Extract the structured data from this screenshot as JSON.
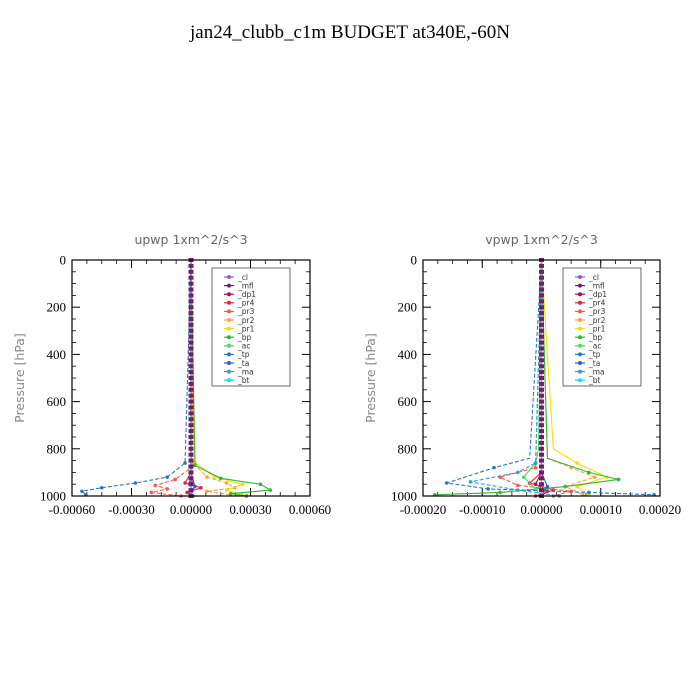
{
  "page": {
    "title": "jan24_clubb_c1m  BUDGET at340E,-60N"
  },
  "legend_terms": [
    "_cl",
    "_mfl",
    "_dp1",
    "_pr4",
    "_pr3",
    "_pr2",
    "_pr1",
    "_bp",
    "_ac",
    "_tp",
    "_ta",
    "_ma",
    "_bt"
  ],
  "colors": {
    "_cl": "#9b59c0",
    "_mfl": "#7a1a6b",
    "_dp1": "#b01040",
    "_pr4": "#e8203a",
    "_pr3": "#ff5a3a",
    "_pr2": "#ffa040",
    "_pr1": "#f5e000",
    "_bp": "#30b830",
    "_ac": "#40e060",
    "_tp": "#2878c8",
    "_ta": "#2f5fd0",
    "_ma": "#30a0d8",
    "_bt": "#20d8e0"
  },
  "chart_data": [
    {
      "type": "line",
      "title": "upwp   1xm^2/s^3",
      "xlabel": "",
      "ylabel": "Pressure [hPa]",
      "xlim": [
        -0.0006,
        0.0006
      ],
      "ylim": [
        1000,
        0
      ],
      "xticks": [
        "-0.00060",
        "-0.00030",
        "0.00000",
        "0.00030",
        "0.00060"
      ],
      "xtick_values": [
        -0.0006,
        -0.0003,
        0,
        0.0003,
        0.0006
      ],
      "yticks": [
        "0",
        "200",
        "400",
        "600",
        "800",
        "1000"
      ],
      "ytick_values": [
        0,
        200,
        400,
        600,
        800,
        1000
      ],
      "legend": "top-right",
      "series": [
        {
          "name": "_cl",
          "x": [
            0,
            0,
            0
          ],
          "y": [
            0,
            900,
            1000
          ]
        },
        {
          "name": "_mfl",
          "x": [
            0,
            0,
            0
          ],
          "y": [
            0,
            900,
            1000
          ]
        },
        {
          "name": "_dp1",
          "x": [
            0,
            0,
            0
          ],
          "y": [
            0,
            940,
            1000
          ]
        },
        {
          "name": "_pr4",
          "x": [
            0,
            0,
            -3e-05,
            5e-05,
            -2e-05,
            1e-05
          ],
          "y": [
            0,
            900,
            945,
            965,
            985,
            1000
          ]
        },
        {
          "name": "_pr3",
          "x": [
            0,
            0,
            -8e-05,
            -0.00018,
            -0.00012,
            -0.0002,
            -5e-05
          ],
          "y": [
            0,
            880,
            930,
            955,
            970,
            985,
            1000
          ]
        },
        {
          "name": "_pr2",
          "x": [
            0,
            1e-05,
            8e-05,
            0.00018,
            0.00022,
            8e-05,
            0.0002
          ],
          "y": [
            0,
            860,
            920,
            945,
            965,
            980,
            995
          ]
        },
        {
          "name": "_pr1",
          "x": [
            0,
            2e-05,
            0.00012,
            0.00026,
            0.00018,
            0.00026
          ],
          "y": [
            0,
            860,
            920,
            950,
            975,
            995
          ]
        },
        {
          "name": "_bp",
          "x": [
            0,
            2e-05,
            0.00015,
            0.00035,
            0.0004,
            0.0002,
            0.00028
          ],
          "y": [
            0,
            870,
            925,
            950,
            975,
            990,
            1000
          ]
        },
        {
          "name": "_ac",
          "x": [
            0,
            0,
            0,
            0
          ],
          "y": [
            0,
            900,
            980,
            1000
          ]
        },
        {
          "name": "_tp",
          "x": [
            0,
            -3e-05,
            -0.00012,
            -0.00028,
            -0.00045,
            -0.00055,
            -0.00053
          ],
          "y": [
            0,
            860,
            920,
            945,
            965,
            980,
            995
          ]
        },
        {
          "name": "_ta",
          "x": [
            0,
            0,
            2e-05,
            0,
            0
          ],
          "y": [
            0,
            900,
            960,
            985,
            1000
          ]
        },
        {
          "name": "_ma",
          "x": [
            0,
            0,
            0
          ],
          "y": [
            0,
            900,
            1000
          ]
        },
        {
          "name": "_bt",
          "x": [
            0,
            0,
            0
          ],
          "y": [
            0,
            900,
            1000
          ]
        }
      ]
    },
    {
      "type": "line",
      "title": "vpwp   1xm^2/s^3",
      "xlabel": "",
      "ylabel": "Pressure [hPa]",
      "xlim": [
        -0.0002,
        0.0002
      ],
      "ylim": [
        1000,
        0
      ],
      "xticks": [
        "-0.00020",
        "-0.00010",
        "0.00000",
        "0.00010",
        "0.00020"
      ],
      "xtick_values": [
        -0.0002,
        -0.0001,
        0,
        0.0001,
        0.0002
      ],
      "yticks": [
        "0",
        "200",
        "400",
        "600",
        "800",
        "1000"
      ],
      "ytick_values": [
        0,
        200,
        400,
        600,
        800,
        1000
      ],
      "legend": "top-right",
      "series": [
        {
          "name": "_cl",
          "x": [
            0,
            0,
            0
          ],
          "y": [
            0,
            900,
            1000
          ]
        },
        {
          "name": "_mfl",
          "x": [
            0,
            0,
            0
          ],
          "y": [
            0,
            900,
            1000
          ]
        },
        {
          "name": "_dp1",
          "x": [
            0,
            0,
            -1e-05,
            1e-05,
            0
          ],
          "y": [
            0,
            900,
            950,
            980,
            1000
          ]
        },
        {
          "name": "_pr4",
          "x": [
            0,
            0,
            -2e-05,
            2e-05,
            -1e-05
          ],
          "y": [
            0,
            900,
            945,
            975,
            1000
          ]
        },
        {
          "name": "_pr3",
          "x": [
            0,
            -1e-05,
            -7e-05,
            -4e-05,
            5e-05,
            2e-05
          ],
          "y": [
            0,
            880,
            920,
            955,
            980,
            1000
          ]
        },
        {
          "name": "_pr2",
          "x": [
            0,
            1e-05,
            5e-05,
            9e-05,
            4e-05,
            7e-05
          ],
          "y": [
            0,
            840,
            880,
            920,
            960,
            995
          ]
        },
        {
          "name": "_pr1",
          "x": [
            0,
            2e-05,
            6e-05,
            0.00011,
            6e-05,
            8e-05
          ],
          "y": [
            0,
            800,
            860,
            920,
            960,
            995
          ]
        },
        {
          "name": "_bp",
          "x": [
            0,
            1e-05,
            8e-05,
            0.00013,
            4e-05,
            -7e-05,
            -0.00018
          ],
          "y": [
            0,
            840,
            900,
            930,
            960,
            985,
            995
          ]
        },
        {
          "name": "_ac",
          "x": [
            0,
            -5e-06,
            -1e-05,
            -3e-05,
            -1e-05,
            0
          ],
          "y": [
            0,
            800,
            860,
            920,
            970,
            1000
          ]
        },
        {
          "name": "_tp",
          "x": [
            0,
            -2e-05,
            -8e-05,
            -0.00016,
            -9e-05,
            8e-05,
            0.00019
          ],
          "y": [
            0,
            840,
            880,
            945,
            970,
            985,
            995
          ]
        },
        {
          "name": "_ta",
          "x": [
            0,
            0,
            1e-05,
            0
          ],
          "y": [
            0,
            900,
            960,
            1000
          ]
        },
        {
          "name": "_ma",
          "x": [
            0,
            -1e-05,
            -4e-05,
            -0.00012,
            -4e-05,
            3e-05
          ],
          "y": [
            0,
            860,
            900,
            940,
            975,
            1000
          ]
        },
        {
          "name": "_bt",
          "x": [
            0,
            0,
            0
          ],
          "y": [
            0,
            900,
            1000
          ]
        }
      ]
    }
  ]
}
